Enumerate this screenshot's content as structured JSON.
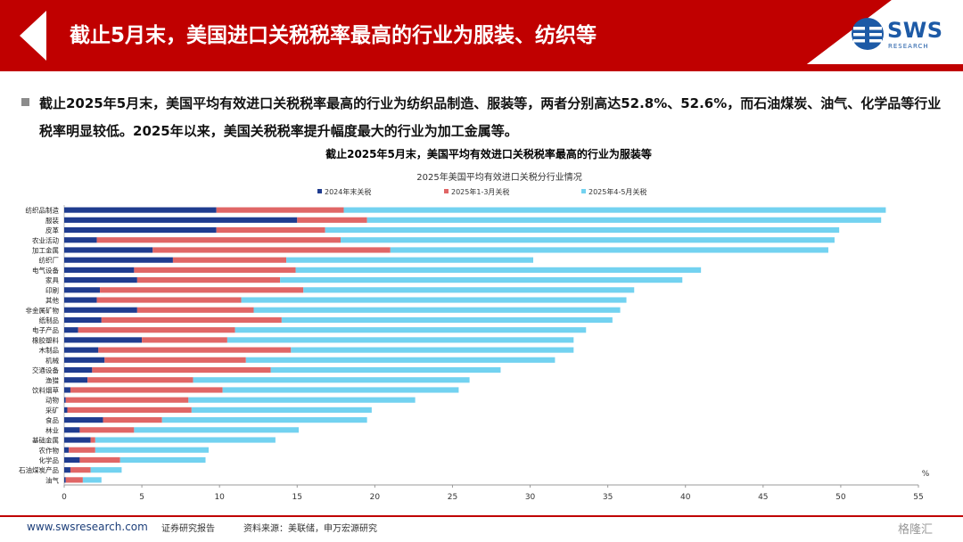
{
  "header": {
    "title": "截止5月末，美国进口关税税率最高的行业为服装、纺织等",
    "logo_text": "SWS",
    "logo_subtext": "RESEARCH",
    "colors": {
      "accent": "#c00000",
      "brand": "#1d5aa6"
    }
  },
  "summary": "截止2025年5月末，美国平均有效进口关税税率最高的行业为纺织品制造、服装等，两者分别高达52.8%、52.6%，而石油煤炭、油气、化学品等行业税率明显较低。2025年以来，美国关税税率提升幅度最大的行业为加工金属等。",
  "chart_data": {
    "type": "bar",
    "orientation": "horizontal",
    "stacked": true,
    "title": "截止2025年5月末，美国平均有效进口关税税率最高的行业为服装等",
    "subtitle": "2025年美国平均有效进口关税分行业情况",
    "unit": "%",
    "xlim": [
      0,
      55
    ],
    "xticks": [
      0,
      5,
      10,
      15,
      20,
      25,
      30,
      35,
      40,
      45,
      50,
      55
    ],
    "legend_position": "top",
    "categories": [
      "纺织品制造",
      "服装",
      "皮革",
      "农业活动",
      "加工金属",
      "纺织厂",
      "电气设备",
      "家具",
      "印刷",
      "其他",
      "非金属矿物",
      "纸制品",
      "电子产品",
      "橡胶塑料",
      "木制品",
      "机械",
      "交通设备",
      "渔猎",
      "饮料烟草",
      "动物",
      "采矿",
      "食品",
      "林业",
      "基础金属",
      "农作物",
      "化学品",
      "石油煤炭产品",
      "油气"
    ],
    "series": [
      {
        "name": "2024年末关税",
        "color": "#1f3c8f",
        "values": [
          9.8,
          15.0,
          9.8,
          2.1,
          5.7,
          7.0,
          4.5,
          4.7,
          2.3,
          2.1,
          4.7,
          2.4,
          0.9,
          5.0,
          2.2,
          2.6,
          1.8,
          1.5,
          0.4,
          0.1,
          0.2,
          2.5,
          1.0,
          1.7,
          0.3,
          1.0,
          0.4,
          0.1
        ]
      },
      {
        "name": "2025年1-3月关税",
        "color": "#e06666",
        "values": [
          8.2,
          4.5,
          7.0,
          15.7,
          15.3,
          7.3,
          10.4,
          9.2,
          13.1,
          9.3,
          7.5,
          11.6,
          10.1,
          5.5,
          12.4,
          9.1,
          11.5,
          6.8,
          9.8,
          7.9,
          8.0,
          3.8,
          3.5,
          0.3,
          1.7,
          2.6,
          1.3,
          1.1
        ]
      },
      {
        "name": "2025年4-5月关税",
        "color": "#73d2f0",
        "values": [
          34.9,
          33.1,
          33.1,
          31.8,
          28.2,
          15.9,
          26.1,
          25.9,
          21.3,
          24.8,
          23.6,
          21.3,
          22.6,
          22.3,
          18.2,
          19.9,
          14.8,
          17.8,
          15.2,
          14.6,
          11.6,
          13.2,
          10.6,
          11.6,
          7.3,
          5.5,
          2.0,
          1.2
        ]
      }
    ]
  },
  "footer": {
    "website": "www.swsresearch.com",
    "report_type": "证券研究报告",
    "source": "资料来源：美联储，申万宏源研究",
    "watermark": "格隆汇"
  }
}
